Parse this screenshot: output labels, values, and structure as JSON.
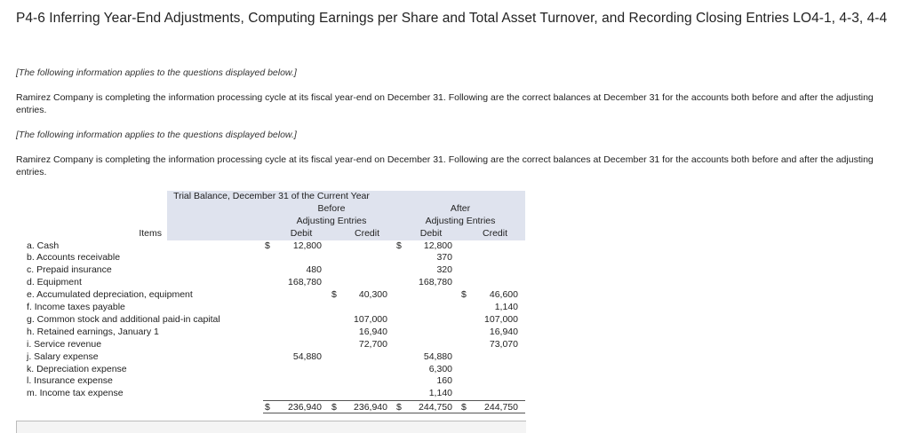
{
  "title": "P4-6 Inferring Year-End Adjustments, Computing Earnings per Share and Total Asset Turnover, and Recording Closing Entries LO4-1, 4-3, 4-4",
  "note1": "[The following information applies to the questions displayed below.]",
  "para1": "Ramirez Company is completing the information processing cycle at its fiscal year-end on December 31. Following are the correct balances at December 31 for the accounts both before and after the adjusting entries.",
  "note2": "[The following information applies to the questions displayed below.]",
  "para2": "Ramirez Company is completing the information processing cycle at its fiscal year-end on December 31. Following are the correct balances at December 31 for the accounts both before and after the adjusting entries.",
  "table": {
    "caption": "Trial Balance, December 31 of the Current Year",
    "before_label": "Before",
    "after_label": "After",
    "adjusting_before": "Adjusting Entries",
    "adjusting_after": "Adjusting Entries",
    "items_header": "Items",
    "debit": "Debit",
    "credit": "Credit",
    "rows": [
      {
        "item": "a. Cash",
        "bd_sign": "$",
        "bd": "12,800",
        "bc_sign": "",
        "bc": "",
        "ad_sign": "$",
        "ad": "12,800",
        "ac_sign": "",
        "ac": ""
      },
      {
        "item": "b. Accounts receivable",
        "bd_sign": "",
        "bd": "",
        "bc_sign": "",
        "bc": "",
        "ad_sign": "",
        "ad": "370",
        "ac_sign": "",
        "ac": ""
      },
      {
        "item": "c. Prepaid insurance",
        "bd_sign": "",
        "bd": "480",
        "bc_sign": "",
        "bc": "",
        "ad_sign": "",
        "ad": "320",
        "ac_sign": "",
        "ac": ""
      },
      {
        "item": "d. Equipment",
        "bd_sign": "",
        "bd": "168,780",
        "bc_sign": "",
        "bc": "",
        "ad_sign": "",
        "ad": "168,780",
        "ac_sign": "",
        "ac": ""
      },
      {
        "item": "e. Accumulated depreciation, equipment",
        "bd_sign": "",
        "bd": "",
        "bc_sign": "$",
        "bc": "40,300",
        "ad_sign": "",
        "ad": "",
        "ac_sign": "$",
        "ac": "46,600"
      },
      {
        "item": "f. Income taxes payable",
        "bd_sign": "",
        "bd": "",
        "bc_sign": "",
        "bc": "",
        "ad_sign": "",
        "ad": "",
        "ac_sign": "",
        "ac": "1,140"
      },
      {
        "item": "g. Common stock and additional paid-in capital",
        "bd_sign": "",
        "bd": "",
        "bc_sign": "",
        "bc": "107,000",
        "ad_sign": "",
        "ad": "",
        "ac_sign": "",
        "ac": "107,000"
      },
      {
        "item": "h. Retained earnings, January 1",
        "bd_sign": "",
        "bd": "",
        "bc_sign": "",
        "bc": "16,940",
        "ad_sign": "",
        "ad": "",
        "ac_sign": "",
        "ac": "16,940"
      },
      {
        "item": "i. Service revenue",
        "bd_sign": "",
        "bd": "",
        "bc_sign": "",
        "bc": "72,700",
        "ad_sign": "",
        "ad": "",
        "ac_sign": "",
        "ac": "73,070"
      },
      {
        "item": "j. Salary expense",
        "bd_sign": "",
        "bd": "54,880",
        "bc_sign": "",
        "bc": "",
        "ad_sign": "",
        "ad": "54,880",
        "ac_sign": "",
        "ac": ""
      },
      {
        "item": "k. Depreciation expense",
        "bd_sign": "",
        "bd": "",
        "bc_sign": "",
        "bc": "",
        "ad_sign": "",
        "ad": "6,300",
        "ac_sign": "",
        "ac": ""
      },
      {
        "item": "l. Insurance expense",
        "bd_sign": "",
        "bd": "",
        "bc_sign": "",
        "bc": "",
        "ad_sign": "",
        "ad": "160",
        "ac_sign": "",
        "ac": ""
      },
      {
        "item": "m. Income tax expense",
        "bd_sign": "",
        "bd": "",
        "bc_sign": "",
        "bc": "",
        "ad_sign": "",
        "ad": "1,140",
        "ac_sign": "",
        "ac": ""
      }
    ],
    "totals": {
      "bd_sign": "$",
      "bd": "236,940",
      "bc_sign": "$",
      "bc": "236,940",
      "ad_sign": "$",
      "ad": "244,750",
      "ac_sign": "$",
      "ac": "244,750"
    }
  }
}
